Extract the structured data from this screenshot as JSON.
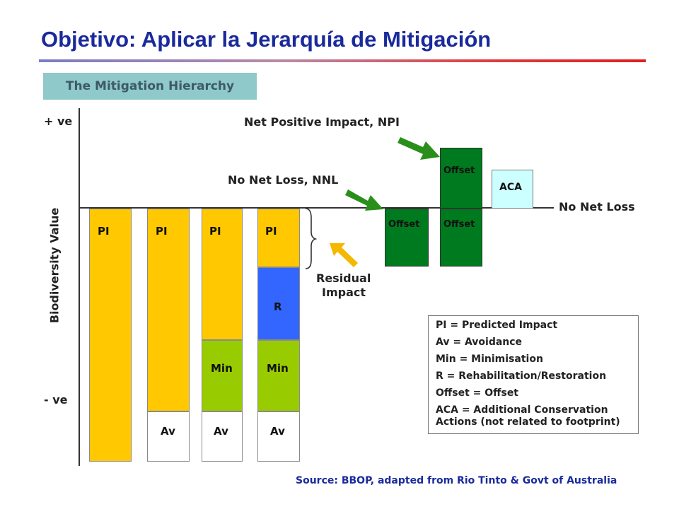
{
  "title": "Objetivo:  Aplicar la Jerarquía de Mitigación",
  "subtitle": "The Mitigation Hierarchy",
  "colors": {
    "title": "#1a2a9c",
    "predicted_impact": "#ffc800",
    "minimisation": "#99cc00",
    "rehabilitation": "#3366ff",
    "avoidance": "#ffffff",
    "offset": "#007a1e",
    "aca": "#ccffff",
    "arrow_green": "#2a8f1a",
    "arrow_orange": "#f5b800"
  },
  "axis": {
    "y_label": "Biodiversity Value",
    "plus_label": "+ ve",
    "minus_label": "- ve",
    "baseline_label": "No Net Loss"
  },
  "bars": [
    {
      "segments": [
        {
          "label": "PI",
          "kind": "predicted_impact"
        }
      ]
    },
    {
      "segments": [
        {
          "label": "PI",
          "kind": "predicted_impact"
        },
        {
          "label": "Av",
          "kind": "avoidance"
        }
      ]
    },
    {
      "segments": [
        {
          "label": "PI",
          "kind": "predicted_impact"
        },
        {
          "label": "Min",
          "kind": "minimisation"
        },
        {
          "label": "Av",
          "kind": "avoidance"
        }
      ]
    },
    {
      "segments": [
        {
          "label": "PI",
          "kind": "predicted_impact"
        },
        {
          "label": "R",
          "kind": "rehabilitation"
        },
        {
          "label": "Min",
          "kind": "minimisation"
        },
        {
          "label": "Av",
          "kind": "avoidance"
        }
      ]
    }
  ],
  "offset_blocks": {
    "nnl_offset": "Offset",
    "npi_offset_upper": "Offset",
    "npi_offset_lower": "Offset",
    "aca": "ACA"
  },
  "annotations": {
    "npi": "Net Positive Impact, NPI",
    "nnl": "No Net Loss, NNL",
    "residual_line1": "Residual",
    "residual_line2": "Impact"
  },
  "legend": [
    "PI = Predicted Impact",
    "Av = Avoidance",
    "Min = Minimisation",
    "R =  Rehabilitation/Restoration",
    "Offset = Offset",
    "ACA = Additional Conservation",
    "Actions (not related to footprint)"
  ],
  "source": "Source:   BBOP, adapted from Rio Tinto & Govt of Australia"
}
